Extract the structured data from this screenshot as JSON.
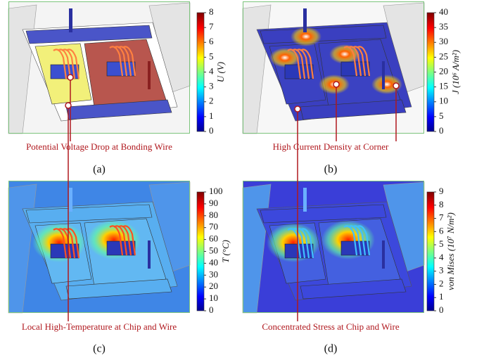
{
  "panels": [
    {
      "caption": "(a)",
      "annotation": "Potential Voltage Drop at Bonding Wire",
      "colorbar": {
        "label": "U (V)",
        "range": [
          0,
          8
        ],
        "ticks": [
          0,
          1,
          2,
          3,
          4,
          5,
          6,
          7,
          8
        ]
      }
    },
    {
      "caption": "(b)",
      "annotation": "High Current Density at Corner",
      "colorbar": {
        "label": "J (10⁶ A/m²)",
        "range": [
          0,
          40
        ],
        "ticks": [
          0,
          5,
          10,
          15,
          20,
          25,
          30,
          35,
          40
        ]
      }
    },
    {
      "caption": "(c)",
      "annotation": "Local High-Temperature at Chip and Wire",
      "colorbar": {
        "label": "T (°C)",
        "range": [
          0,
          100
        ],
        "ticks": [
          0,
          10,
          20,
          30,
          40,
          50,
          60,
          70,
          80,
          90,
          100
        ]
      }
    },
    {
      "caption": "(d)",
      "annotation": "Concentrated Stress at Chip and Wire",
      "colorbar": {
        "label": "von Mises (10⁷ N/m²)",
        "range": [
          0,
          9
        ],
        "ticks": [
          0,
          1,
          2,
          3,
          4,
          5,
          6,
          7,
          8,
          9
        ]
      }
    }
  ]
}
